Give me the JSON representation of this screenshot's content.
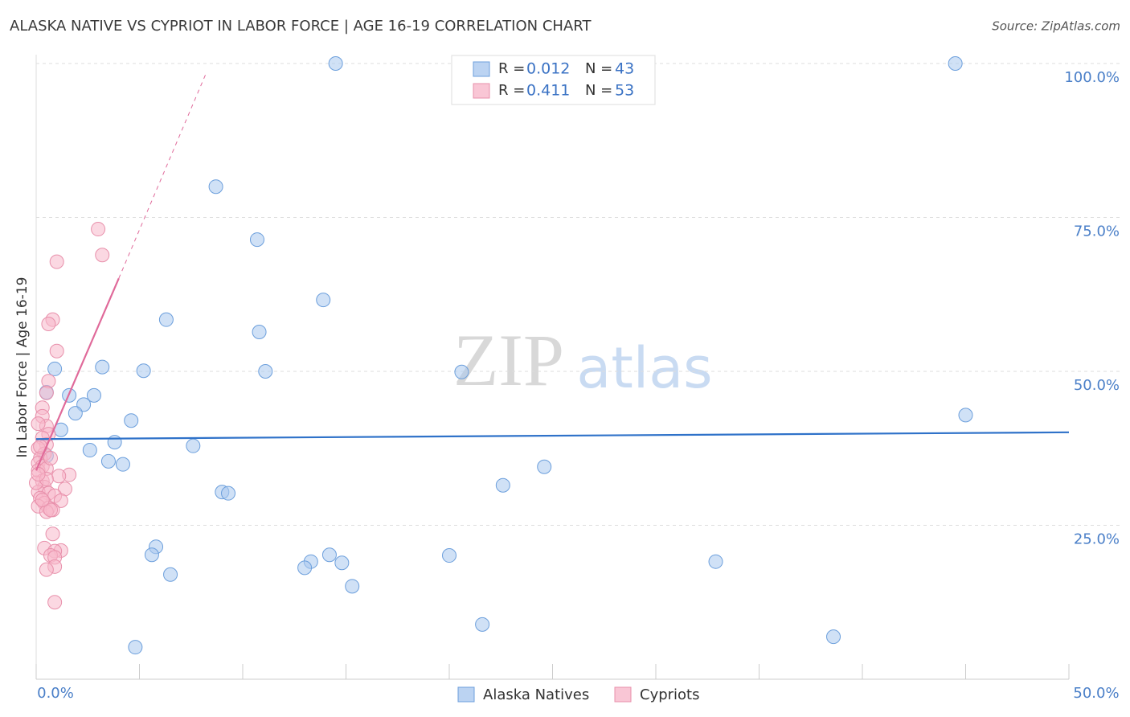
{
  "chart_data": {
    "type": "scatter",
    "title": "ALASKA NATIVE VS CYPRIOT IN LABOR FORCE | AGE 16-19 CORRELATION CHART",
    "source": "Source: ZipAtlas.com",
    "y_label": "In Labor Force | Age 16-19",
    "watermark": {
      "zip": "ZIP",
      "atlas": "atlas"
    },
    "xlim": [
      0,
      50
    ],
    "ylim": [
      0,
      100
    ],
    "xticks": [
      {
        "value": 0,
        "label": "0.0%"
      },
      {
        "value": 5,
        "label": null
      },
      {
        "value": 10,
        "label": null
      },
      {
        "value": 15,
        "label": null
      },
      {
        "value": 20,
        "label": null
      },
      {
        "value": 25,
        "label": null
      },
      {
        "value": 30,
        "label": null
      },
      {
        "value": 35,
        "label": null
      },
      {
        "value": 40,
        "label": null
      },
      {
        "value": 45,
        "label": null
      },
      {
        "value": 50,
        "label": "50.0%"
      }
    ],
    "yticks": [
      {
        "value": 25,
        "label": "25.0%"
      },
      {
        "value": 50,
        "label": "50.0%"
      },
      {
        "value": 75,
        "label": "75.0%"
      },
      {
        "value": 100,
        "label": "100.0%"
      }
    ],
    "grid": true,
    "legend_stats": {
      "r_label": "R =",
      "n_label": "N ="
    },
    "series": [
      {
        "name": "Alaska Natives",
        "color": "#6c9fdc",
        "fill": "#aac8ef",
        "line_color": "#2f72c9",
        "r": 0.012,
        "n": 43,
        "x": [
          14.5,
          44.5,
          8.7,
          10.7,
          13.9,
          6.3,
          10.8,
          3.2,
          5.2,
          11.1,
          20.6,
          0.9,
          0.5,
          1.6,
          2.8,
          2.3,
          1.9,
          45.0,
          4.6,
          1.2,
          3.8,
          2.6,
          7.6,
          3.5,
          4.2,
          24.6,
          22.6,
          9.0,
          9.3,
          5.8,
          5.6,
          14.2,
          20.0,
          13.3,
          13.0,
          14.8,
          32.9,
          6.5,
          15.3,
          21.6,
          38.6,
          4.8,
          0.5
        ],
        "values": [
          100,
          100,
          80.0,
          71.4,
          61.6,
          58.4,
          56.4,
          50.7,
          50.1,
          50.0,
          49.9,
          50.4,
          46.6,
          46.1,
          46.1,
          44.6,
          43.2,
          42.9,
          42.0,
          40.5,
          38.5,
          37.2,
          37.9,
          35.4,
          34.9,
          34.5,
          31.5,
          30.4,
          30.2,
          21.5,
          20.2,
          20.2,
          20.1,
          19.1,
          18.1,
          18.9,
          19.1,
          17.0,
          15.1,
          8.9,
          6.9,
          5.2,
          36.3
        ],
        "trend": {
          "x": [
            0,
            50
          ],
          "y": [
            39.0,
            40.1
          ]
        }
      },
      {
        "name": "Cypriots",
        "color": "#e890ab",
        "fill": "#f7b8cb",
        "line_color": "#e06a9a",
        "r": 0.411,
        "n": 53,
        "x": [
          3.0,
          3.2,
          1.0,
          0.8,
          0.6,
          1.0,
          0.6,
          0.5,
          0.3,
          0.3,
          0.5,
          0.1,
          0.6,
          0.3,
          0.5,
          0.1,
          0.4,
          0.2,
          0.1,
          0.3,
          0.1,
          0.5,
          1.6,
          1.1,
          0.3,
          0.4,
          1.4,
          0.1,
          0.6,
          0.9,
          0.2,
          1.2,
          0.4,
          0.1,
          0.6,
          0.8,
          0.5,
          0.7,
          0.8,
          0.4,
          1.2,
          0.9,
          0.7,
          0.9,
          0.9,
          0.5,
          0.9,
          0.0,
          0.5,
          0.2,
          0.7,
          0.3,
          0.1
        ],
        "values": [
          73.1,
          68.9,
          67.8,
          58.4,
          57.7,
          53.3,
          48.4,
          46.5,
          44.1,
          42.7,
          41.1,
          41.5,
          39.8,
          39.2,
          38.1,
          37.5,
          36.6,
          35.9,
          35.1,
          34.6,
          33.9,
          34.2,
          33.2,
          33.0,
          32.2,
          31.2,
          30.9,
          30.4,
          30.2,
          29.8,
          29.4,
          29.0,
          28.6,
          28.1,
          27.8,
          27.5,
          27.2,
          27.5,
          23.6,
          21.3,
          20.9,
          20.8,
          20.1,
          19.8,
          18.3,
          17.8,
          12.5,
          31.9,
          32.5,
          37.8,
          35.9,
          29.1,
          33.3
        ],
        "trend": {
          "x": [
            0,
            4.0
          ],
          "y": [
            33.9,
            65.1
          ]
        },
        "trend_extension": {
          "x": [
            4.0,
            8.2
          ],
          "y": [
            65.1,
            98.2
          ]
        }
      }
    ]
  }
}
